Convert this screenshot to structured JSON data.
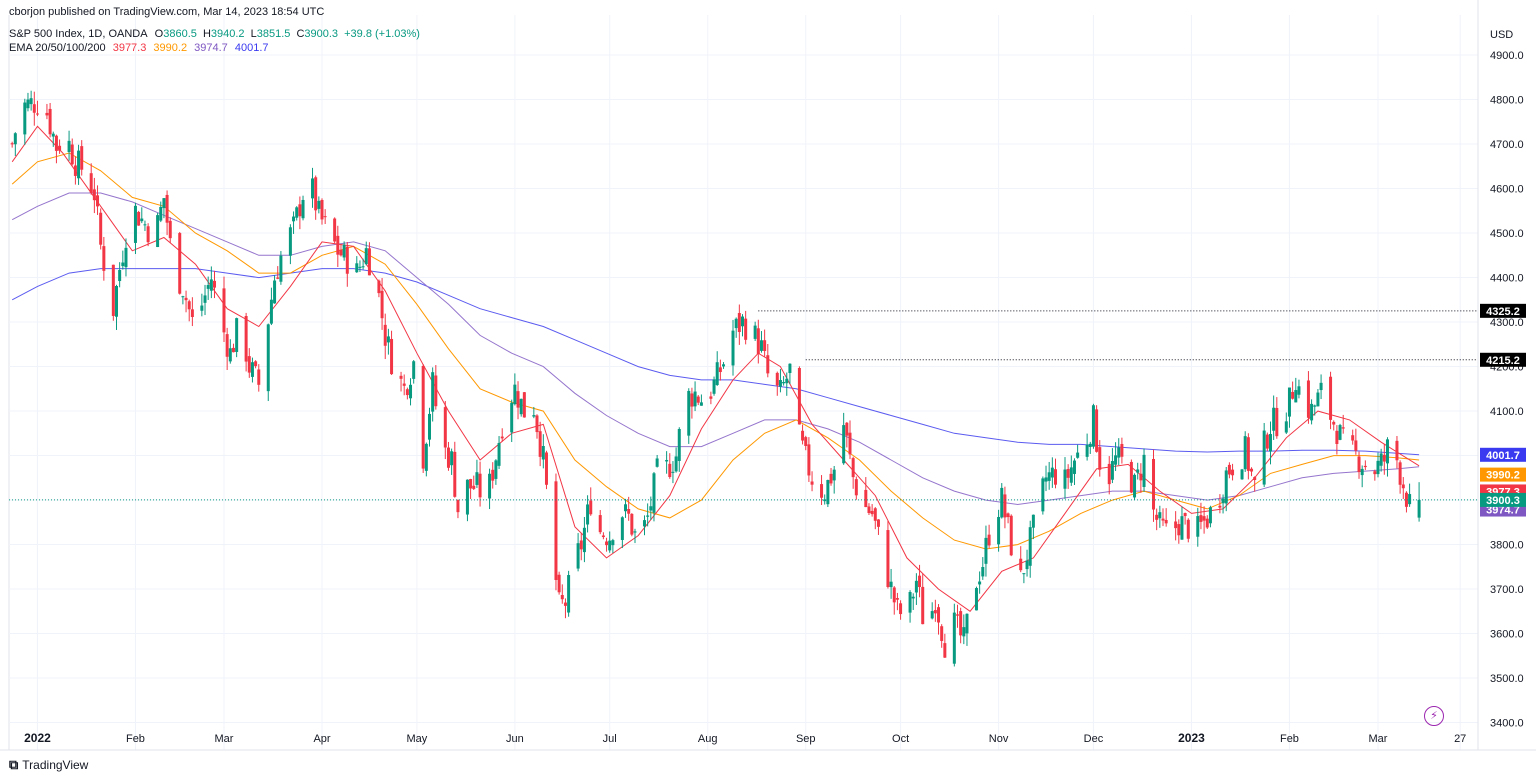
{
  "header": {
    "published": "cborjon published on TradingView.com, Mar 14, 2023 18:54 UTC",
    "symbol": "S&P 500 Index, 1D, OANDA",
    "open_label": "O",
    "open": "3860.5",
    "high_label": "H",
    "high": "3940.2",
    "low_label": "L",
    "low": "3851.5",
    "close_label": "C",
    "close": "3900.3",
    "change": "+39.8 (+1.03%)",
    "ema_label": "EMA 20/50/100/200",
    "ema20": "3977.3",
    "ema50": "3990.2",
    "ema100": "3974.7",
    "ema200": "4001.7"
  },
  "footer": {
    "brand": "TradingView"
  },
  "colors": {
    "up": "#089981",
    "down": "#f23645",
    "ema20": "#f23645",
    "ema50": "#ff9800",
    "ema100": "#9575cd",
    "ema200": "#5b5bf0",
    "grid": "#f0f3fa",
    "text": "#131722"
  },
  "chart_data": {
    "type": "candlestick",
    "title": "S&P 500 Index, 1D, OANDA",
    "currency": "USD",
    "ylim": [
      3390,
      4990
    ],
    "y_ticks": [
      3400,
      3500,
      3600,
      3700,
      3800,
      3900,
      4000,
      4100,
      4200,
      4300,
      4400,
      4500,
      4600,
      4700,
      4800,
      4900
    ],
    "x_tick_labels": [
      {
        "label": "2022",
        "bold": true,
        "day": 0
      },
      {
        "label": "Feb",
        "day": 31
      },
      {
        "label": "Mar",
        "day": 59
      },
      {
        "label": "Apr",
        "day": 90
      },
      {
        "label": "May",
        "day": 120
      },
      {
        "label": "Jun",
        "day": 151
      },
      {
        "label": "Jul",
        "day": 181
      },
      {
        "label": "Aug",
        "day": 212
      },
      {
        "label": "Sep",
        "day": 243
      },
      {
        "label": "Oct",
        "day": 273
      },
      {
        "label": "Nov",
        "day": 304
      },
      {
        "label": "Dec",
        "day": 334
      },
      {
        "label": "2023",
        "bold": true,
        "day": 365
      },
      {
        "label": "Feb",
        "day": 396
      },
      {
        "label": "Mar",
        "day": 424
      },
      {
        "label": "27",
        "day": 450
      }
    ],
    "x_range_days": [
      -9,
      455
    ],
    "close_anchors": [
      [
        -8,
        4700
      ],
      [
        -5,
        4785
      ],
      [
        0,
        4795
      ],
      [
        3,
        4770
      ],
      [
        6,
        4695
      ],
      [
        9,
        4720
      ],
      [
        12,
        4660
      ],
      [
        15,
        4640
      ],
      [
        18,
        4590
      ],
      [
        20,
        4470
      ],
      [
        22,
        4400
      ],
      [
        24,
        4330
      ],
      [
        26,
        4420
      ],
      [
        28,
        4500
      ],
      [
        31,
        4550
      ],
      [
        34,
        4520
      ],
      [
        37,
        4490
      ],
      [
        40,
        4580
      ],
      [
        43,
        4420
      ],
      [
        46,
        4380
      ],
      [
        49,
        4300
      ],
      [
        52,
        4340
      ],
      [
        55,
        4400
      ],
      [
        58,
        4300
      ],
      [
        61,
        4230
      ],
      [
        64,
        4300
      ],
      [
        67,
        4200
      ],
      [
        70,
        4160
      ],
      [
        72,
        4260
      ],
      [
        75,
        4400
      ],
      [
        78,
        4470
      ],
      [
        81,
        4510
      ],
      [
        84,
        4590
      ],
      [
        86,
        4620
      ],
      [
        89,
        4540
      ],
      [
        92,
        4500
      ],
      [
        95,
        4460
      ],
      [
        98,
        4440
      ],
      [
        101,
        4410
      ],
      [
        104,
        4460
      ],
      [
        107,
        4400
      ],
      [
        110,
        4270
      ],
      [
        113,
        4190
      ],
      [
        116,
        4150
      ],
      [
        119,
        4210
      ],
      [
        122,
        4000
      ],
      [
        125,
        4160
      ],
      [
        128,
        4020
      ],
      [
        131,
        3990
      ],
      [
        133,
        3880
      ],
      [
        136,
        3930
      ],
      [
        139,
        3930
      ],
      [
        142,
        3900
      ],
      [
        145,
        4000
      ],
      [
        148,
        4110
      ],
      [
        151,
        4150
      ],
      [
        154,
        4100
      ],
      [
        157,
        4110
      ],
      [
        160,
        3990
      ],
      [
        163,
        3780
      ],
      [
        165,
        3660
      ],
      [
        167,
        3670
      ],
      [
        170,
        3760
      ],
      [
        172,
        3800
      ],
      [
        175,
        3900
      ],
      [
        178,
        3830
      ],
      [
        181,
        3820
      ],
      [
        184,
        3880
      ],
      [
        187,
        3860
      ],
      [
        190,
        3800
      ],
      [
        193,
        3860
      ],
      [
        196,
        3960
      ],
      [
        199,
        3970
      ],
      [
        202,
        4000
      ],
      [
        205,
        4130
      ],
      [
        208,
        4140
      ],
      [
        211,
        4120
      ],
      [
        214,
        4160
      ],
      [
        217,
        4210
      ],
      [
        220,
        4280
      ],
      [
        223,
        4300
      ],
      [
        226,
        4280
      ],
      [
        229,
        4240
      ],
      [
        232,
        4150
      ],
      [
        235,
        4140
      ],
      [
        238,
        4190
      ],
      [
        240,
        4060
      ],
      [
        243,
        3990
      ],
      [
        246,
        3930
      ],
      [
        249,
        3920
      ],
      [
        252,
        3970
      ],
      [
        255,
        4070
      ],
      [
        258,
        3950
      ],
      [
        261,
        3890
      ],
      [
        264,
        3870
      ],
      [
        267,
        3790
      ],
      [
        270,
        3700
      ],
      [
        272,
        3650
      ],
      [
        275,
        3640
      ],
      [
        278,
        3720
      ],
      [
        281,
        3600
      ],
      [
        284,
        3680
      ],
      [
        287,
        3580
      ],
      [
        290,
        3620
      ],
      [
        293,
        3580
      ],
      [
        296,
        3700
      ],
      [
        299,
        3760
      ],
      [
        302,
        3860
      ],
      [
        305,
        3900
      ],
      [
        308,
        3800
      ],
      [
        311,
        3720
      ],
      [
        313,
        3780
      ],
      [
        316,
        3860
      ],
      [
        319,
        3950
      ],
      [
        322,
        3960
      ],
      [
        325,
        3940
      ],
      [
        328,
        3990
      ],
      [
        331,
        4020
      ],
      [
        334,
        4080
      ],
      [
        336,
        3990
      ],
      [
        338,
        3940
      ],
      [
        341,
        3990
      ],
      [
        344,
        3980
      ],
      [
        347,
        3930
      ],
      [
        350,
        3990
      ],
      [
        352,
        3890
      ],
      [
        355,
        3840
      ],
      [
        358,
        3820
      ],
      [
        361,
        3850
      ],
      [
        364,
        3840
      ],
      [
        367,
        3830
      ],
      [
        370,
        3860
      ],
      [
        373,
        3890
      ],
      [
        376,
        3960
      ],
      [
        379,
        3990
      ],
      [
        382,
        4010
      ],
      [
        385,
        3930
      ],
      [
        387,
        4000
      ],
      [
        390,
        4070
      ],
      [
        393,
        4080
      ],
      [
        396,
        4120
      ],
      [
        398,
        4180
      ],
      [
        400,
        4120
      ],
      [
        403,
        4100
      ],
      [
        406,
        4140
      ],
      [
        409,
        4090
      ],
      [
        411,
        4060
      ],
      [
        414,
        4010
      ],
      [
        417,
        4000
      ],
      [
        420,
        3980
      ],
      [
        423,
        3970
      ],
      [
        426,
        3990
      ],
      [
        428,
        4040
      ],
      [
        430,
        3990
      ],
      [
        433,
        3910
      ],
      [
        435,
        3860
      ],
      [
        437,
        3900
      ]
    ],
    "last_candle": {
      "open": 3860.5,
      "high": 3940.2,
      "low": 3851.5,
      "close": 3900.3
    },
    "ema_last": {
      "ema20": 3977.3,
      "ema50": 3990.2,
      "ema100": 3974.7,
      "ema200": 4001.7
    },
    "price_labels": [
      {
        "value": 4325.2,
        "label": "4325.2",
        "color": "#000000",
        "line_from_day": 228,
        "style": "dotted"
      },
      {
        "value": 4215.2,
        "label": "4215.2",
        "color": "#000000",
        "line_from_day": 243,
        "style": "dotted"
      },
      {
        "value": 4001.7,
        "label": "4001.7",
        "color": "#3a3af0",
        "y_offset_value": 0
      },
      {
        "value": 3990.2,
        "label": "3990.2",
        "color": "#ff9800",
        "y_offset_value": -33
      },
      {
        "value": 3977.3,
        "label": "3977.3",
        "color": "#f23645",
        "y_offset_value": -58
      },
      {
        "value": 3974.7,
        "label": "3974.7",
        "color": "#7e57c2",
        "y_offset_value": -96
      },
      {
        "value": 3900.3,
        "label": "3900.3",
        "color": "#089981",
        "line_from_day": -9,
        "style": "dotted-green"
      }
    ],
    "ema_curves": {
      "ema20": [
        [
          -8,
          4660
        ],
        [
          0,
          4740
        ],
        [
          8,
          4680
        ],
        [
          20,
          4560
        ],
        [
          30,
          4460
        ],
        [
          40,
          4490
        ],
        [
          50,
          4430
        ],
        [
          60,
          4330
        ],
        [
          70,
          4290
        ],
        [
          80,
          4380
        ],
        [
          90,
          4480
        ],
        [
          100,
          4470
        ],
        [
          110,
          4370
        ],
        [
          120,
          4230
        ],
        [
          130,
          4100
        ],
        [
          140,
          3990
        ],
        [
          150,
          4050
        ],
        [
          160,
          4070
        ],
        [
          170,
          3840
        ],
        [
          180,
          3770
        ],
        [
          190,
          3820
        ],
        [
          200,
          3910
        ],
        [
          210,
          4060
        ],
        [
          220,
          4170
        ],
        [
          228,
          4230
        ],
        [
          235,
          4200
        ],
        [
          245,
          4070
        ],
        [
          255,
          3990
        ],
        [
          265,
          3910
        ],
        [
          275,
          3770
        ],
        [
          285,
          3700
        ],
        [
          295,
          3650
        ],
        [
          305,
          3740
        ],
        [
          315,
          3770
        ],
        [
          325,
          3870
        ],
        [
          335,
          3970
        ],
        [
          345,
          3980
        ],
        [
          355,
          3920
        ],
        [
          365,
          3870
        ],
        [
          375,
          3880
        ],
        [
          385,
          3950
        ],
        [
          395,
          4040
        ],
        [
          405,
          4100
        ],
        [
          415,
          4080
        ],
        [
          425,
          4030
        ],
        [
          437,
          3977
        ]
      ],
      "ema50": [
        [
          -8,
          4610
        ],
        [
          0,
          4660
        ],
        [
          10,
          4680
        ],
        [
          20,
          4640
        ],
        [
          30,
          4580
        ],
        [
          40,
          4560
        ],
        [
          50,
          4500
        ],
        [
          60,
          4460
        ],
        [
          70,
          4410
        ],
        [
          80,
          4410
        ],
        [
          90,
          4450
        ],
        [
          100,
          4470
        ],
        [
          110,
          4430
        ],
        [
          120,
          4340
        ],
        [
          130,
          4240
        ],
        [
          140,
          4150
        ],
        [
          150,
          4120
        ],
        [
          160,
          4100
        ],
        [
          170,
          3990
        ],
        [
          180,
          3930
        ],
        [
          190,
          3880
        ],
        [
          200,
          3860
        ],
        [
          210,
          3900
        ],
        [
          220,
          3990
        ],
        [
          230,
          4050
        ],
        [
          240,
          4080
        ],
        [
          250,
          4040
        ],
        [
          260,
          3990
        ],
        [
          270,
          3920
        ],
        [
          280,
          3860
        ],
        [
          290,
          3810
        ],
        [
          300,
          3790
        ],
        [
          310,
          3800
        ],
        [
          320,
          3830
        ],
        [
          330,
          3870
        ],
        [
          340,
          3900
        ],
        [
          350,
          3920
        ],
        [
          360,
          3900
        ],
        [
          370,
          3880
        ],
        [
          380,
          3910
        ],
        [
          390,
          3960
        ],
        [
          400,
          3980
        ],
        [
          410,
          4000
        ],
        [
          420,
          4000
        ],
        [
          430,
          3995
        ],
        [
          437,
          3990
        ]
      ],
      "ema100": [
        [
          -8,
          4530
        ],
        [
          0,
          4560
        ],
        [
          10,
          4590
        ],
        [
          20,
          4590
        ],
        [
          30,
          4570
        ],
        [
          40,
          4540
        ],
        [
          50,
          4510
        ],
        [
          60,
          4480
        ],
        [
          70,
          4450
        ],
        [
          80,
          4450
        ],
        [
          90,
          4470
        ],
        [
          100,
          4480
        ],
        [
          110,
          4460
        ],
        [
          120,
          4400
        ],
        [
          130,
          4340
        ],
        [
          140,
          4270
        ],
        [
          150,
          4230
        ],
        [
          160,
          4200
        ],
        [
          170,
          4140
        ],
        [
          180,
          4090
        ],
        [
          190,
          4050
        ],
        [
          200,
          4020
        ],
        [
          210,
          4020
        ],
        [
          220,
          4050
        ],
        [
          230,
          4080
        ],
        [
          240,
          4080
        ],
        [
          250,
          4060
        ],
        [
          260,
          4030
        ],
        [
          270,
          3990
        ],
        [
          280,
          3950
        ],
        [
          290,
          3920
        ],
        [
          300,
          3900
        ],
        [
          310,
          3890
        ],
        [
          320,
          3900
        ],
        [
          330,
          3910
        ],
        [
          340,
          3920
        ],
        [
          350,
          3920
        ],
        [
          360,
          3910
        ],
        [
          370,
          3900
        ],
        [
          380,
          3910
        ],
        [
          390,
          3930
        ],
        [
          400,
          3950
        ],
        [
          410,
          3960
        ],
        [
          420,
          3965
        ],
        [
          430,
          3970
        ],
        [
          437,
          3975
        ]
      ],
      "ema200": [
        [
          -8,
          4350
        ],
        [
          0,
          4380
        ],
        [
          10,
          4410
        ],
        [
          20,
          4420
        ],
        [
          30,
          4420
        ],
        [
          40,
          4420
        ],
        [
          50,
          4420
        ],
        [
          60,
          4410
        ],
        [
          70,
          4400
        ],
        [
          80,
          4410
        ],
        [
          90,
          4420
        ],
        [
          100,
          4420
        ],
        [
          110,
          4410
        ],
        [
          120,
          4390
        ],
        [
          130,
          4360
        ],
        [
          140,
          4330
        ],
        [
          150,
          4310
        ],
        [
          160,
          4290
        ],
        [
          170,
          4260
        ],
        [
          180,
          4230
        ],
        [
          190,
          4200
        ],
        [
          200,
          4180
        ],
        [
          210,
          4170
        ],
        [
          220,
          4170
        ],
        [
          230,
          4160
        ],
        [
          240,
          4150
        ],
        [
          250,
          4130
        ],
        [
          260,
          4110
        ],
        [
          270,
          4090
        ],
        [
          280,
          4070
        ],
        [
          290,
          4050
        ],
        [
          300,
          4040
        ],
        [
          310,
          4030
        ],
        [
          320,
          4025
        ],
        [
          330,
          4025
        ],
        [
          340,
          4020
        ],
        [
          350,
          4015
        ],
        [
          360,
          4010
        ],
        [
          370,
          4008
        ],
        [
          380,
          4010
        ],
        [
          390,
          4010
        ],
        [
          400,
          4012
        ],
        [
          410,
          4012
        ],
        [
          420,
          4010
        ],
        [
          430,
          4005
        ],
        [
          437,
          4001.7
        ]
      ]
    }
  }
}
